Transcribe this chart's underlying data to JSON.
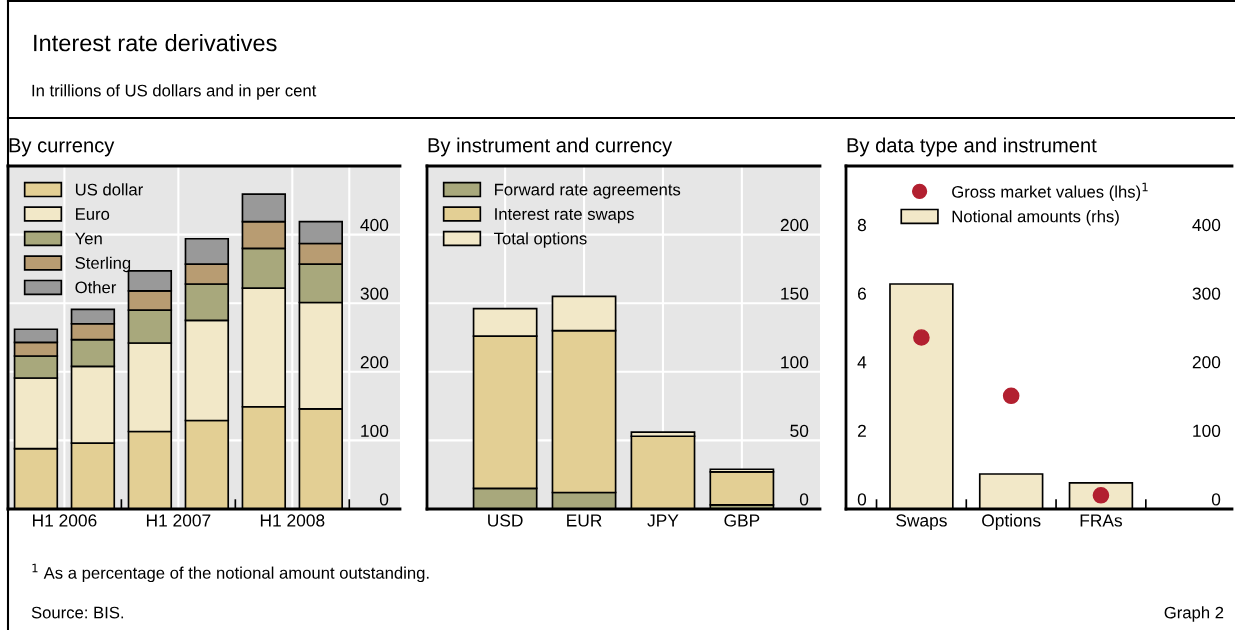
{
  "chart_data": [
    {
      "type": "other",
      "title": "Interest rate derivatives",
      "subtitle": "In trillions of US dollars and in per cent",
      "annotations": [
        "$^{1}$ As a percentage of the notional amount outstanding.",
        "Source: BIS.",
        "Graph 2"
      ]
    },
    {
      "type": "bar",
      "title": "By currency",
      "categories": [
        "H1 2006",
        null,
        "H1 2007",
        null,
        "H1 2008",
        null
      ],
      "stacked": true,
      "ylim": [
        0,
        500
      ],
      "yticks": [
        0,
        100,
        200,
        300,
        400
      ],
      "grid": true,
      "legend": "top left",
      "series": [
        {
          "name": "US dollar",
          "color": "#e3cf94",
          "values": [
            88,
            96,
            113,
            129,
            149,
            146
          ]
        },
        {
          "name": "Euro",
          "color": "#f2e8c8",
          "values": [
            103,
            112,
            129,
            146,
            173,
            155
          ]
        },
        {
          "name": "Yen",
          "color": "#a8a87c",
          "values": [
            32,
            39,
            48,
            53,
            58,
            56
          ]
        },
        {
          "name": "Sterling",
          "color": "#b89c72",
          "values": [
            20,
            23,
            28,
            29,
            39,
            30
          ]
        },
        {
          "name": "Other",
          "color": "#999999",
          "values": [
            19,
            21,
            29,
            37,
            40,
            32
          ]
        }
      ]
    },
    {
      "type": "bar",
      "title": "By instrument and currency",
      "categories": [
        "USD",
        "EUR",
        "JPY",
        "GBP"
      ],
      "stacked": true,
      "ylim": [
        0,
        250
      ],
      "yticks": [
        0,
        50,
        100,
        150,
        200
      ],
      "grid": true,
      "legend": "top left",
      "series": [
        {
          "name": "Forward rate agreements",
          "color": "#a8a87c",
          "values": [
            15,
            12,
            null,
            3
          ]
        },
        {
          "name": "Interest rate swaps",
          "color": "#e3cf94",
          "values": [
            111,
            118,
            53,
            24
          ]
        },
        {
          "name": "Total options",
          "color": "#f2e8c8",
          "values": [
            20,
            25,
            3,
            2
          ]
        }
      ]
    },
    {
      "type": "bar",
      "title": "By data type and instrument",
      "categories": [
        "Swaps",
        "Options",
        "FRAs"
      ],
      "ylim": [
        0,
        10
      ],
      "yticks": [
        0,
        2,
        4,
        6,
        8
      ],
      "y2lim": [
        0,
        500
      ],
      "y2ticks": [
        0,
        100,
        200,
        300,
        400
      ],
      "grid": true,
      "legend": "top left",
      "series": [
        {
          "name": "Gross market values (lhs)$^{1}$",
          "type": "scatter",
          "axis": "y",
          "color": "#b22030",
          "values": [
            5.0,
            3.3,
            0.4
          ]
        },
        {
          "name": "Notional amounts (rhs)",
          "type": "bar",
          "axis": "y2",
          "color": "#f2e8c8",
          "values": [
            328,
            51,
            38
          ]
        }
      ]
    }
  ]
}
